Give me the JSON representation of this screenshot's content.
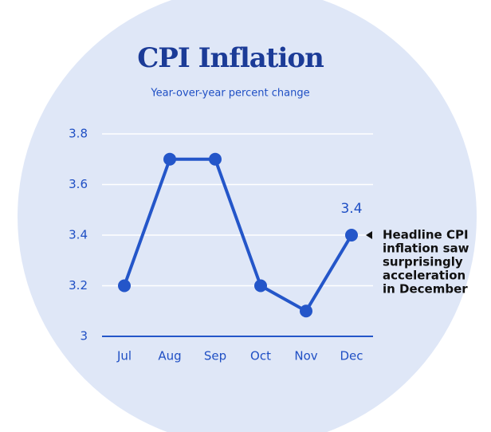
{
  "chart_data": {
    "type": "line",
    "title": "CPI Inflation",
    "subtitle": "Year-over-year percent change",
    "categories": [
      "Jul",
      "Aug",
      "Sep",
      "Oct",
      "Nov",
      "Dec"
    ],
    "series": [
      {
        "name": "CPI",
        "color": "#2456c9",
        "values": [
          3.2,
          3.7,
          3.7,
          3.2,
          3.1,
          3.4
        ]
      }
    ],
    "ylim": [
      3,
      3.8
    ],
    "yticks": [
      3,
      3.2,
      3.4,
      3.6,
      3.8
    ],
    "grid": true,
    "annotation": [
      "Headline CPI",
      "inflation saw",
      "surprisingly",
      "acceleration",
      "in December"
    ]
  }
}
